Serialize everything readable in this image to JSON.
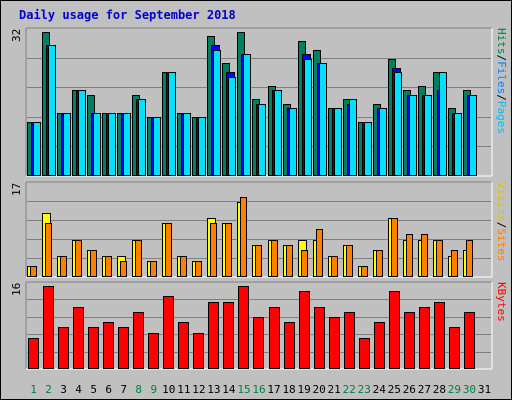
{
  "title": "Daily usage for September 2018",
  "chart_data": [
    {
      "type": "bar",
      "panel": "top",
      "ymax_label": "32",
      "ylim": [
        0,
        32
      ],
      "grid": true,
      "axis_labels": [
        {
          "text": "Hits",
          "color": "#008040"
        },
        {
          "text": "/",
          "color": "#000000"
        },
        {
          "text": "Files",
          "color": "#0080ff"
        },
        {
          "text": "/",
          "color": "#000000"
        },
        {
          "text": "Pages",
          "color": "#00c0ff"
        }
      ],
      "categories": [
        "1",
        "2",
        "3",
        "4",
        "5",
        "6",
        "7",
        "8",
        "9",
        "10",
        "11",
        "12",
        "13",
        "14",
        "15",
        "16",
        "17",
        "18",
        "19",
        "20",
        "21",
        "22",
        "23",
        "24",
        "25",
        "26",
        "27",
        "28",
        "29",
        "30",
        "31"
      ],
      "series": [
        {
          "name": "Hits",
          "color": "#008060",
          "values": [
            12,
            32,
            14,
            19,
            18,
            14,
            14,
            18,
            13,
            23,
            14,
            13,
            31,
            25,
            32,
            17,
            20,
            16,
            30,
            28,
            15,
            17,
            12,
            16,
            26,
            19,
            20,
            23,
            15,
            19,
            0
          ]
        },
        {
          "name": "Files",
          "color": "#0000ff",
          "values": [
            12,
            29,
            14,
            19,
            14,
            14,
            14,
            17,
            13,
            23,
            14,
            13,
            29,
            23,
            27,
            16,
            19,
            15,
            27,
            25,
            15,
            16,
            12,
            15,
            24,
            18,
            18,
            19,
            14,
            18,
            0
          ]
        },
        {
          "name": "Pages",
          "color": "#00e0ff",
          "values": [
            12,
            29,
            14,
            19,
            14,
            14,
            14,
            17,
            13,
            23,
            14,
            13,
            28,
            22,
            27,
            16,
            19,
            15,
            26,
            25,
            15,
            17,
            12,
            15,
            23,
            18,
            18,
            23,
            14,
            18,
            0
          ]
        }
      ]
    },
    {
      "type": "bar",
      "panel": "middle",
      "ymax_label": "17",
      "ylim": [
        0,
        17
      ],
      "grid": true,
      "axis_labels": [
        {
          "text": "Visits",
          "color": "#e0c000"
        },
        {
          "text": "/",
          "color": "#000000"
        },
        {
          "text": "Sites",
          "color": "#ff8000"
        }
      ],
      "categories": [
        "1",
        "2",
        "3",
        "4",
        "5",
        "6",
        "7",
        "8",
        "9",
        "10",
        "11",
        "12",
        "13",
        "14",
        "15",
        "16",
        "17",
        "18",
        "19",
        "20",
        "21",
        "22",
        "23",
        "24",
        "25",
        "26",
        "27",
        "28",
        "29",
        "30",
        "31"
      ],
      "series": [
        {
          "name": "Visits",
          "color": "#ffff00",
          "values": [
            2,
            12,
            4,
            7,
            5,
            4,
            4,
            7,
            3,
            10,
            4,
            3,
            11,
            10,
            14,
            6,
            7,
            6,
            7,
            7,
            4,
            6,
            2,
            5,
            11,
            7,
            7,
            7,
            4,
            5,
            0
          ]
        },
        {
          "name": "Sites",
          "color": "#ff8000",
          "values": [
            2,
            10,
            4,
            7,
            5,
            4,
            3,
            7,
            3,
            10,
            4,
            3,
            10,
            10,
            15,
            6,
            7,
            6,
            5,
            9,
            4,
            6,
            2,
            5,
            11,
            8,
            8,
            7,
            5,
            7,
            0
          ]
        }
      ]
    },
    {
      "type": "bar",
      "panel": "bottom",
      "ymax_label": "16",
      "ylim": [
        0,
        16
      ],
      "grid": true,
      "axis_labels": [
        {
          "text": "KBytes",
          "color": "#ff0000"
        }
      ],
      "categories": [
        "1",
        "2",
        "3",
        "4",
        "5",
        "6",
        "7",
        "8",
        "9",
        "10",
        "11",
        "12",
        "13",
        "14",
        "15",
        "16",
        "17",
        "18",
        "19",
        "20",
        "21",
        "22",
        "23",
        "24",
        "25",
        "26",
        "27",
        "28",
        "29",
        "30",
        "31"
      ],
      "series": [
        {
          "name": "KBytes",
          "color": "#ff0000",
          "values": [
            6,
            16,
            8,
            12,
            8,
            9,
            8,
            11,
            7,
            14,
            9,
            7,
            13,
            13,
            16,
            10,
            12,
            9,
            15,
            12,
            10,
            11,
            6,
            9,
            15,
            11,
            12,
            13,
            8,
            11,
            0
          ]
        }
      ]
    }
  ],
  "x_axis": {
    "labels": [
      "1",
      "2",
      "3",
      "4",
      "5",
      "6",
      "7",
      "8",
      "9",
      "10",
      "11",
      "12",
      "13",
      "14",
      "15",
      "16",
      "17",
      "18",
      "19",
      "20",
      "21",
      "22",
      "23",
      "24",
      "25",
      "26",
      "27",
      "28",
      "29",
      "30",
      "31"
    ],
    "weekend_days": [
      "1",
      "2",
      "8",
      "9",
      "15",
      "16",
      "22",
      "23",
      "29",
      "30"
    ],
    "weekday_color": "#000000",
    "weekend_color": "#008040"
  }
}
